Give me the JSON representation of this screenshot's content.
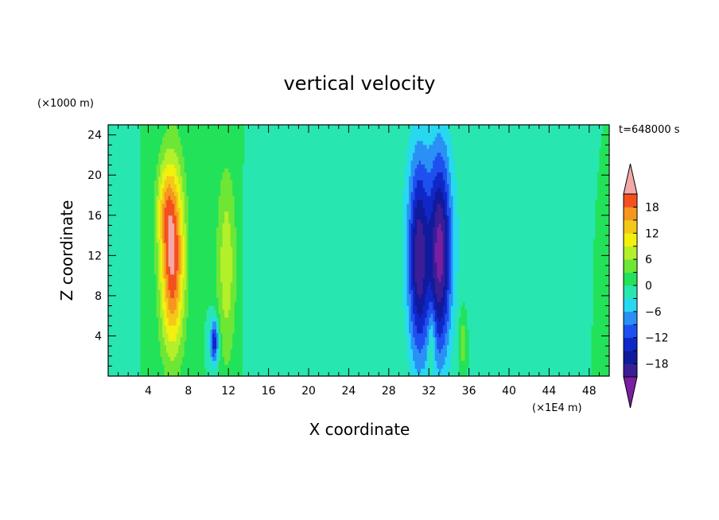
{
  "chart_data": {
    "type": "heatmap",
    "title": "vertical velocity",
    "xlabel": "X coordinate",
    "ylabel": "Z coordinate",
    "x_unit_label": "(×1E4 m)",
    "y_unit_label": "(×1000 m)",
    "time_label": "t=648000 s",
    "xlim": [
      0,
      50
    ],
    "ylim": [
      0,
      25
    ],
    "x_ticks": [
      "4",
      "8",
      "12",
      "16",
      "20",
      "24",
      "28",
      "32",
      "36",
      "40",
      "44",
      "48"
    ],
    "y_ticks": [
      "4",
      "8",
      "12",
      "16",
      "20",
      "24"
    ],
    "background_value": 0,
    "colorbar": {
      "tick_labels": [
        "18",
        "12",
        "6",
        "0",
        "−6",
        "−12",
        "−18"
      ],
      "levels": [
        -21,
        -18,
        -15,
        -12,
        -9,
        -6,
        -3,
        0,
        3,
        6,
        9,
        12,
        15,
        18,
        21
      ],
      "colors": [
        "#7a1fa2",
        "#3a1e96",
        "#101a9c",
        "#1027c8",
        "#1e50f0",
        "#2a90f5",
        "#27d8f0",
        "#28e6b0",
        "#22e25a",
        "#6ee636",
        "#b4f02a",
        "#f2f00f",
        "#f5c818",
        "#f5961f",
        "#f4501f",
        "#e81e1e",
        "#f4a8a8"
      ],
      "under_color": "#7a1fa2",
      "over_color": "#f4a8a8"
    },
    "features": [
      {
        "x": 6.4,
        "z": 12.0,
        "peak": 22,
        "sx": 0.85,
        "sz": 6.5
      },
      {
        "x": 5.6,
        "z": 17.0,
        "peak": 6,
        "sx": 0.6,
        "sz": 3.0
      },
      {
        "x": 11.8,
        "z": 11.0,
        "peak": 8,
        "sx": 0.7,
        "sz": 7.0
      },
      {
        "x": 10.6,
        "z": 3.5,
        "peak": -15,
        "sx": 0.3,
        "sz": 1.6
      },
      {
        "x": 31.0,
        "z": 11.5,
        "peak": -17,
        "sx": 0.7,
        "sz": 7.0
      },
      {
        "x": 33.1,
        "z": 12.0,
        "peak": -19,
        "sx": 0.75,
        "sz": 7.0
      },
      {
        "x": 32.1,
        "z": 14.0,
        "peak": -4,
        "sx": 2.5,
        "sz": 8.5
      },
      {
        "x": 32.3,
        "z": 3.5,
        "peak": 6,
        "sx": 0.25,
        "sz": 2.5
      },
      {
        "x": 35.4,
        "z": 3.5,
        "peak": 6,
        "sx": 0.25,
        "sz": 2.2
      },
      {
        "x": 1.6,
        "z": 13.0,
        "peak": -3,
        "sx": 0.5,
        "sz": 6.0
      },
      {
        "x": 14.2,
        "z": 9.0,
        "peak": -3,
        "sx": 0.5,
        "sz": 6.0
      },
      {
        "x": 47.5,
        "z": 14.0,
        "peak": -3,
        "sx": 0.6,
        "sz": 7.0
      },
      {
        "x": 49.0,
        "z": 8.0,
        "peak": 3,
        "sx": 0.4,
        "sz": 5.0
      },
      {
        "x": 38.5,
        "z": 11.0,
        "peak": -2,
        "sx": 0.6,
        "sz": 5.0
      }
    ]
  }
}
